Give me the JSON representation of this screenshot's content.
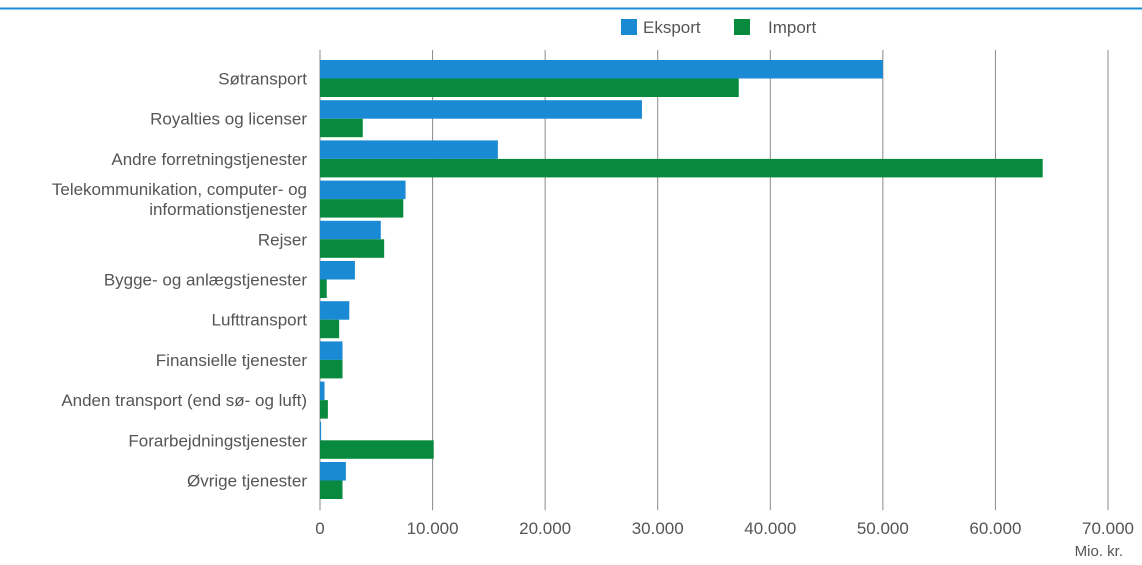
{
  "chart_data": {
    "type": "bar",
    "orientation": "horizontal",
    "categories": [
      "Søtransport",
      "Royalties og licenser",
      "Andre forretningstjenester",
      [
        "Telekommunikation, computer- og",
        "informationstjenester"
      ],
      "Rejser",
      "Bygge- og anlægstjenester",
      "Lufttransport",
      "Finansielle tjenester",
      "Anden transport (end sø- og luft)",
      "Forarbejdningstjenester",
      "Øvrige tjenester"
    ],
    "series": [
      {
        "name": "Eksport",
        "color": "#1a8ad4",
        "values": [
          50000,
          28600,
          15800,
          7600,
          5400,
          3100,
          2600,
          2000,
          400,
          100,
          2300
        ]
      },
      {
        "name": "Import",
        "color": "#078a3e",
        "values": [
          37200,
          3800,
          64200,
          7400,
          5700,
          600,
          1700,
          2000,
          700,
          10100,
          2000
        ]
      }
    ],
    "x_ticks": [
      0,
      10000,
      20000,
      30000,
      40000,
      50000,
      60000,
      70000
    ],
    "x_tick_labels": [
      "0",
      "10.000",
      "20.000",
      "30.000",
      "40.000",
      "50.000",
      "60.000",
      "70.000"
    ],
    "xlim": [
      0,
      70000
    ],
    "unit_label": "Mio. kr.",
    "grid": true,
    "legend": "top-center",
    "header_color": "#1a8ad4"
  }
}
